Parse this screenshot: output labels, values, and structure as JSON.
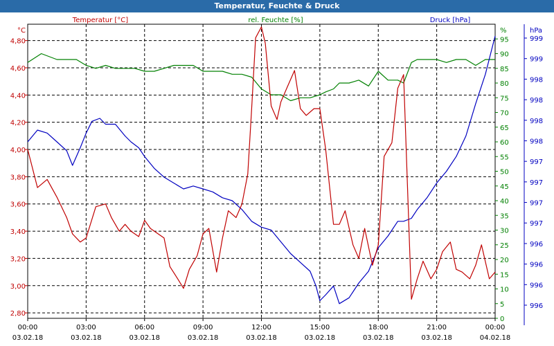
{
  "window": {
    "title": "Temperatur, Feuchte & Druck"
  },
  "colors": {
    "temperature": "#c00000",
    "humidity": "#008000",
    "pressure": "#0000c0",
    "titlebar": "#2a6ba8"
  },
  "chart_data": {
    "type": "line",
    "title": "Temperatur, Feuchte & Druck",
    "grid": true,
    "x_ticks": [
      {
        "time": "00:00",
        "date": "03.02.18"
      },
      {
        "time": "03:00",
        "date": "03.02.18"
      },
      {
        "time": "06:00",
        "date": "03.02.18"
      },
      {
        "time": "09:00",
        "date": "03.02.18"
      },
      {
        "time": "12:00",
        "date": "03.02.18"
      },
      {
        "time": "15:00",
        "date": "03.02.18"
      },
      {
        "time": "18:00",
        "date": "03.02.18"
      },
      {
        "time": "21:00",
        "date": "03.02.18"
      },
      {
        "time": "00:00",
        "date": "04.02.18"
      }
    ],
    "xlim_hours": [
      0,
      24
    ],
    "axes": {
      "temperature": {
        "label": "Temperatur [°C]",
        "unit": "°C",
        "ylim": [
          2.76,
          4.92
        ],
        "ticks": [
          "4,80",
          "4,60",
          "4,40",
          "4,20",
          "4,00",
          "3,80",
          "3,60",
          "3,40",
          "3,20",
          "3,00",
          "2,80"
        ],
        "tick_values": [
          4.8,
          4.6,
          4.4,
          4.2,
          4.0,
          3.8,
          3.6,
          3.4,
          3.2,
          3.0,
          2.8
        ]
      },
      "humidity": {
        "label": "rel. Feuchte [%]",
        "unit": "%",
        "ylim": [
          0,
          100
        ],
        "ticks": [
          "95",
          "90",
          "85",
          "80",
          "75",
          "70",
          "65",
          "60",
          "55",
          "50",
          "45",
          "40",
          "35",
          "30",
          "25",
          "20",
          "15",
          "10",
          "5",
          "0"
        ],
        "tick_values": [
          95,
          90,
          85,
          80,
          75,
          70,
          65,
          60,
          55,
          50,
          45,
          40,
          35,
          30,
          25,
          20,
          15,
          10,
          5,
          0
        ]
      },
      "pressure": {
        "label": "Druck [hPa]",
        "unit": "hPa",
        "ticks": [
          "999",
          "999",
          "998",
          "998",
          "998",
          "998",
          "997",
          "997",
          "997",
          "997",
          "996",
          "996",
          "996",
          "996"
        ]
      }
    },
    "series": [
      {
        "name": "Temperatur [°C]",
        "axis": "temperature",
        "x": [
          0,
          0.5,
          1,
          1.5,
          2,
          2.3,
          2.7,
          3,
          3.5,
          4,
          4.3,
          4.7,
          5,
          5.3,
          5.7,
          6,
          6.3,
          6.7,
          7,
          7.3,
          7.7,
          8,
          8.3,
          8.7,
          9,
          9.3,
          9.7,
          10,
          10.3,
          10.7,
          11,
          11.3,
          11.5,
          11.7,
          12,
          12.2,
          12.5,
          12.8,
          13,
          13.3,
          13.7,
          14,
          14.3,
          14.7,
          15,
          15.3,
          15.7,
          16,
          16.3,
          16.7,
          17,
          17.3,
          17.7,
          18,
          18.3,
          18.7,
          19,
          19.3,
          19.7,
          20,
          20.3,
          20.7,
          21,
          21.3,
          21.7,
          22,
          22.3,
          22.7,
          23,
          23.3,
          23.7,
          24
        ],
        "values": [
          4.0,
          3.72,
          3.78,
          3.65,
          3.5,
          3.38,
          3.32,
          3.35,
          3.58,
          3.6,
          3.5,
          3.4,
          3.45,
          3.4,
          3.36,
          3.48,
          3.42,
          3.38,
          3.35,
          3.14,
          3.05,
          2.98,
          3.12,
          3.22,
          3.38,
          3.42,
          3.1,
          3.35,
          3.55,
          3.5,
          3.6,
          3.82,
          4.3,
          4.82,
          4.9,
          4.78,
          4.32,
          4.22,
          4.35,
          4.45,
          4.58,
          4.3,
          4.25,
          4.3,
          4.3,
          4.0,
          3.45,
          3.45,
          3.55,
          3.3,
          3.2,
          3.42,
          3.15,
          3.3,
          3.95,
          4.05,
          4.45,
          4.55,
          2.9,
          3.05,
          3.18,
          3.05,
          3.12,
          3.25,
          3.32,
          3.12,
          3.1,
          3.05,
          3.15,
          3.3,
          3.05,
          3.1
        ]
      },
      {
        "name": "rel. Feuchte [%]",
        "axis": "humidity",
        "x": [
          0,
          0.7,
          1.5,
          2.5,
          3,
          3.5,
          4,
          4.5,
          5,
          5.5,
          6,
          6.5,
          7,
          7.5,
          8,
          8.5,
          9,
          9.5,
          10,
          10.5,
          11,
          11.5,
          12,
          12.5,
          13,
          13.5,
          14,
          14.5,
          15,
          15.3,
          15.7,
          16,
          16.5,
          17,
          17.5,
          18,
          18.5,
          19,
          19.3,
          19.7,
          20,
          20.5,
          21,
          21.5,
          22,
          22.5,
          23,
          23.5,
          24
        ],
        "values": [
          87,
          90,
          88,
          88,
          86,
          85,
          86,
          85,
          85,
          85,
          84,
          84,
          85,
          86,
          86,
          86,
          84,
          84,
          84,
          83,
          83,
          82,
          78,
          76,
          76,
          74,
          75,
          75,
          76,
          77,
          78,
          80,
          80,
          81,
          79,
          84,
          81,
          81,
          80,
          87,
          88,
          88,
          88,
          87,
          88,
          88,
          86,
          88,
          88
        ]
      },
      {
        "name": "Druck [hPa]",
        "axis": "pressure",
        "x": [
          0,
          0.5,
          1,
          1.5,
          2,
          2.3,
          2.7,
          3,
          3.3,
          3.7,
          4,
          4.5,
          5,
          5.3,
          5.7,
          6,
          6.5,
          7,
          7.5,
          8,
          8.5,
          9,
          9.5,
          10,
          10.5,
          11,
          11.5,
          12,
          12.5,
          13,
          13.5,
          14,
          14.5,
          14.8,
          15,
          15.3,
          15.7,
          16,
          16.5,
          17,
          17.5,
          18,
          18.5,
          19,
          19.3,
          19.7,
          20,
          20.5,
          21,
          21.5,
          22,
          22.5,
          23,
          23.5,
          24
        ],
        "values": [
          60,
          64,
          63,
          60,
          57,
          52,
          58,
          63,
          67,
          68,
          66,
          66,
          62,
          60,
          58,
          55,
          51,
          48,
          46,
          44,
          45,
          44,
          43,
          41,
          40,
          37,
          33,
          31,
          30,
          26,
          22,
          19,
          16,
          11,
          6,
          8,
          11,
          5,
          7,
          12,
          16,
          24,
          28,
          33,
          33,
          34,
          37,
          41,
          46,
          50,
          55,
          62,
          73,
          83,
          96
        ]
      }
    ]
  }
}
